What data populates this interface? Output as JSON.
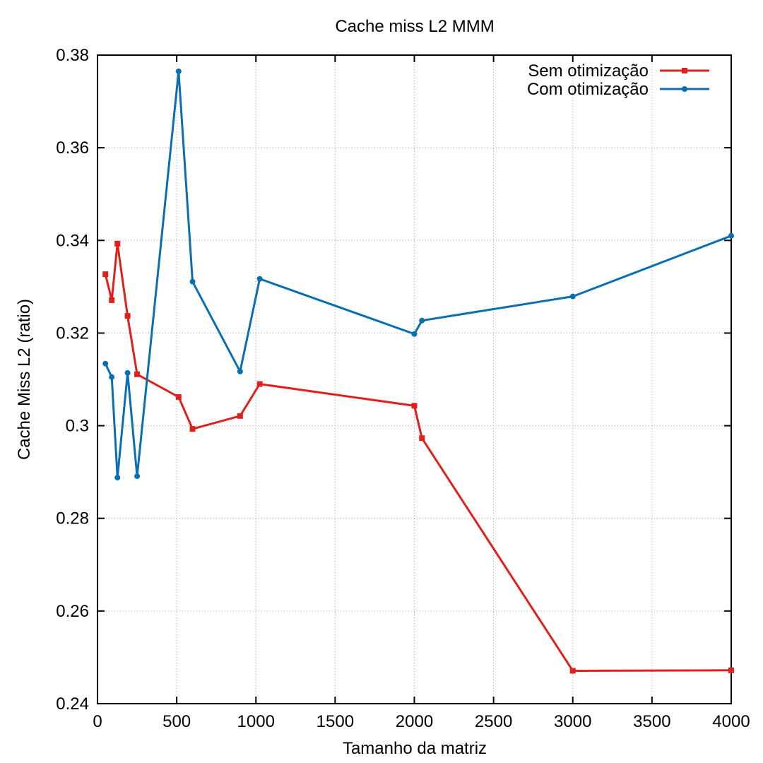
{
  "chart_data": {
    "type": "line",
    "title": "Cache miss L2 MMM",
    "xlabel": "Tamanho da matriz",
    "ylabel": "Cache Miss L2 (ratio)",
    "xlim": [
      0,
      4000
    ],
    "ylim": [
      0.24,
      0.38
    ],
    "xticks": [
      0,
      500,
      1000,
      1500,
      2000,
      2500,
      3000,
      3500,
      4000
    ],
    "xtick_labels": [
      "0",
      "500",
      "1000",
      "1500",
      "2000",
      "2500",
      "3000",
      "3500",
      "4000"
    ],
    "yticks": [
      0.24,
      0.26,
      0.28,
      0.3,
      0.32,
      0.34,
      0.36,
      0.38
    ],
    "ytick_labels": [
      "0.24",
      "0.26",
      "0.28",
      "0.3",
      "0.32",
      "0.34",
      "0.36",
      "0.38"
    ],
    "grid": true,
    "legend_position": "top-right",
    "series": [
      {
        "name": "Sem otimização",
        "color": "#e0201c",
        "marker": "square",
        "x": [
          50,
          90,
          126,
          190,
          250,
          512,
          600,
          900,
          1024,
          2000,
          2048,
          3000,
          4000
        ],
        "y": [
          0.3327,
          0.3271,
          0.3393,
          0.3237,
          0.3111,
          0.3062,
          0.2993,
          0.3021,
          0.309,
          0.3043,
          0.2973,
          0.2471,
          0.2472
        ]
      },
      {
        "name": "Com otimização",
        "color": "#0a6fb0",
        "marker": "circle",
        "x": [
          50,
          90,
          126,
          190,
          250,
          512,
          600,
          900,
          1024,
          2000,
          2048,
          3000,
          4000
        ],
        "y": [
          0.3134,
          0.3105,
          0.2888,
          0.3114,
          0.2891,
          0.3765,
          0.3311,
          0.3117,
          0.3317,
          0.3198,
          0.3227,
          0.3279,
          0.341
        ]
      }
    ]
  }
}
